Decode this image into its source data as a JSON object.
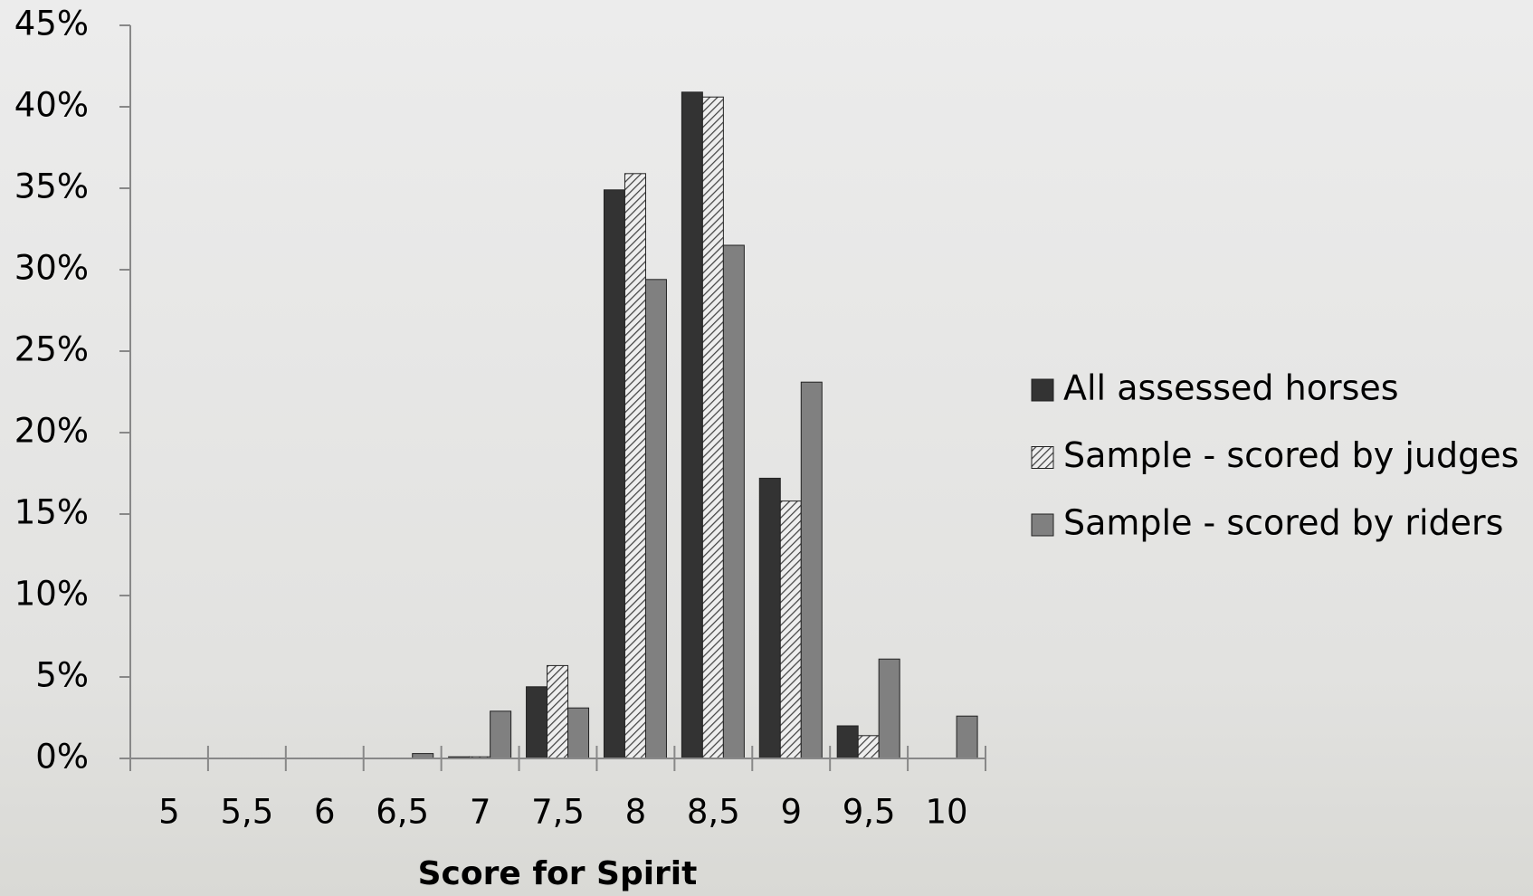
{
  "chart_data": {
    "type": "bar",
    "xlabel": "Score for Spirit",
    "categories": [
      "5",
      "5,5",
      "6",
      "6,5",
      "7",
      "7,5",
      "8",
      "8,5",
      "9",
      "9,5",
      "10"
    ],
    "series": [
      {
        "name": "All assessed horses",
        "color": "#333333",
        "values": [
          0,
          0,
          0,
          0,
          0.1,
          4.4,
          34.9,
          40.9,
          17.2,
          2.0,
          0
        ]
      },
      {
        "name": "Sample - scored by judges",
        "color": "#c8c8c8",
        "hatch": true,
        "values": [
          0,
          0,
          0,
          0,
          0.1,
          5.7,
          35.9,
          40.6,
          15.8,
          1.4,
          0
        ]
      },
      {
        "name": "Sample - scored by riders",
        "color": "#808080",
        "values": [
          0,
          0,
          0,
          0.3,
          2.9,
          3.1,
          29.4,
          31.5,
          23.1,
          6.1,
          2.6
        ]
      }
    ],
    "ylim": [
      0,
      45
    ],
    "yticks": [
      {
        "value": 0,
        "label": "0%"
      },
      {
        "value": 5,
        "label": "5%"
      },
      {
        "value": 10,
        "label": "10%"
      },
      {
        "value": 15,
        "label": "15%"
      },
      {
        "value": 20,
        "label": "20%"
      },
      {
        "value": 25,
        "label": "25%"
      },
      {
        "value": 30,
        "label": "30%"
      },
      {
        "value": 35,
        "label": "35%"
      },
      {
        "value": 40,
        "label": "40%"
      },
      {
        "value": 45,
        "label": "45%"
      }
    ],
    "legend": "right"
  }
}
